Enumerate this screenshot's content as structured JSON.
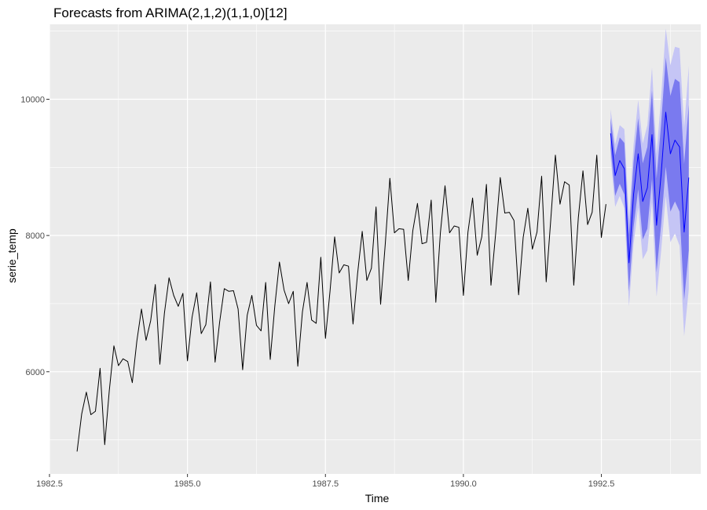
{
  "chart_data": {
    "type": "line",
    "title": "Forecasts from ARIMA(2,1,2)(1,1,0)[12]",
    "xlabel": "Time",
    "ylabel": "serie_temp",
    "xlim": [
      1982.5,
      1994.3
    ],
    "ylim": [
      4500,
      11100
    ],
    "x_ticks": [
      {
        "value": 1982.5,
        "label": "1982.5"
      },
      {
        "value": 1985.0,
        "label": "1985.0"
      },
      {
        "value": 1987.5,
        "label": "1987.5"
      },
      {
        "value": 1990.0,
        "label": "1990.0"
      },
      {
        "value": 1992.5,
        "label": "1992.5"
      }
    ],
    "y_ticks": [
      {
        "value": 6000,
        "label": "6000"
      },
      {
        "value": 8000,
        "label": "8000"
      },
      {
        "value": 10000,
        "label": "10000"
      }
    ],
    "grid": true,
    "legend": "none",
    "colors": {
      "panel": "#ebebeb",
      "grid": "#ffffff",
      "series": "#000000",
      "forecast": "#0000ff",
      "band80": "#7a7aef",
      "band95": "#c5c5f5"
    },
    "series": [
      {
        "x": [
          1983.0,
          1983.083,
          1983.167,
          1983.25,
          1983.333,
          1983.417,
          1983.5,
          1983.583,
          1983.667,
          1983.75,
          1983.833,
          1983.917,
          1984.0,
          1984.083,
          1984.167,
          1984.25,
          1984.333,
          1984.417,
          1984.5,
          1984.583,
          1984.667,
          1984.75,
          1984.833,
          1984.917,
          1985.0,
          1985.083,
          1985.167,
          1985.25,
          1985.333,
          1985.417,
          1985.5,
          1985.583,
          1985.667,
          1985.75,
          1985.833,
          1985.917,
          1986.0,
          1986.083,
          1986.167,
          1986.25,
          1986.333,
          1986.417,
          1986.5,
          1986.583,
          1986.667,
          1986.75,
          1986.833,
          1986.917,
          1987.0,
          1987.083,
          1987.167,
          1987.25,
          1987.333,
          1987.417,
          1987.5,
          1987.583,
          1987.667,
          1987.75,
          1987.833,
          1987.917,
          1988.0,
          1988.083,
          1988.167,
          1988.25,
          1988.333,
          1988.417,
          1988.5,
          1988.583,
          1988.667,
          1988.75,
          1988.833,
          1988.917,
          1989.0,
          1989.083,
          1989.167,
          1989.25,
          1989.333,
          1989.417,
          1989.5,
          1989.583,
          1989.667,
          1989.75,
          1989.833,
          1989.917,
          1990.0,
          1990.083,
          1990.167,
          1990.25,
          1990.333,
          1990.417,
          1990.5,
          1990.583,
          1990.667,
          1990.75,
          1990.833,
          1990.917,
          1991.0,
          1991.083,
          1991.167,
          1991.25,
          1991.333,
          1991.417,
          1991.5,
          1991.583,
          1991.667,
          1991.75,
          1991.833,
          1991.917,
          1992.0,
          1992.083,
          1992.167,
          1992.25,
          1992.333,
          1992.417,
          1992.5,
          1992.583
        ],
        "y": [
          4830,
          5380,
          5700,
          5370,
          5420,
          6050,
          4930,
          5720,
          6380,
          6090,
          6190,
          6150,
          5840,
          6450,
          6920,
          6460,
          6750,
          7280,
          6110,
          6860,
          7380,
          7120,
          6960,
          7150,
          6160,
          6800,
          7160,
          6560,
          6690,
          7320,
          6140,
          6730,
          7220,
          7180,
          7190,
          6920,
          6030,
          6830,
          7120,
          6680,
          6600,
          7310,
          6180,
          6960,
          7610,
          7200,
          7000,
          7180,
          6080,
          6880,
          7310,
          6760,
          6710,
          7680,
          6490,
          7180,
          7980,
          7450,
          7570,
          7550,
          6700,
          7440,
          8060,
          7340,
          7520,
          8420,
          6990,
          7870,
          8840,
          8040,
          8100,
          8090,
          7340,
          8070,
          8470,
          7880,
          7900,
          8520,
          7020,
          8040,
          8730,
          8040,
          8140,
          8120,
          7120,
          8050,
          8550,
          7710,
          7980,
          8750,
          7270,
          8020,
          8850,
          8330,
          8340,
          8220,
          7130,
          7970,
          8400,
          7800,
          8050,
          8870,
          7320,
          8230,
          9180,
          8460,
          8790,
          8740,
          7270,
          8260,
          8950,
          8160,
          8340,
          9180,
          7970,
          8460
        ]
      }
    ],
    "forecast": {
      "x": [
        1992.667,
        1992.75,
        1992.833,
        1992.917,
        1993.0,
        1993.083,
        1993.167,
        1993.25,
        1993.333,
        1993.417,
        1993.5,
        1993.583,
        1993.667,
        1993.75,
        1993.833,
        1993.917,
        1994.0,
        1994.083
      ],
      "mean": [
        9500,
        8880,
        9100,
        8980,
        7600,
        8600,
        9200,
        8500,
        8700,
        9480,
        8150,
        8900,
        9810,
        9200,
        9400,
        9300,
        8050,
        8850
      ],
      "lo80": [
        9280,
        8580,
        8760,
        8600,
        7180,
        8120,
        8680,
        7940,
        8100,
        8830,
        7460,
        8160,
        9010,
        8350,
        8500,
        8350,
        7050,
        7780
      ],
      "hi80": [
        9720,
        9180,
        9440,
        9360,
        8020,
        9080,
        9720,
        9060,
        9300,
        10130,
        8840,
        9640,
        10610,
        10050,
        10300,
        10250,
        9050,
        9920
      ],
      "lo95": [
        9150,
        8420,
        8580,
        8400,
        6960,
        7870,
        8410,
        7650,
        7780,
        8490,
        7100,
        7770,
        8580,
        7900,
        8030,
        7850,
        6520,
        7210
      ],
      "hi95": [
        9850,
        9340,
        9620,
        9560,
        8240,
        9330,
        9990,
        9350,
        9620,
        10470,
        9200,
        10030,
        11040,
        10500,
        10770,
        10750,
        9580,
        10490
      ]
    }
  }
}
